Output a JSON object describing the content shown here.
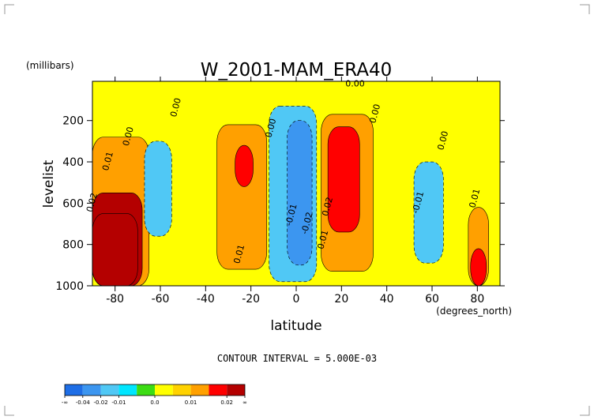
{
  "chart_data": {
    "type": "heatmap",
    "title": "W_2001-MAM_ERA40",
    "xlabel": "latitude",
    "ylabel": "levelist",
    "x_units": "(degrees_north)",
    "y_units": "(millibars)",
    "xlim": [
      -90,
      90
    ],
    "ylim": [
      1000,
      10
    ],
    "x_ticks": [
      -80,
      -60,
      -40,
      -20,
      0,
      20,
      40,
      60,
      80
    ],
    "x_tick_labels": [
      "-80",
      "-60",
      "-40",
      "-20",
      "0",
      "20",
      "40",
      "60",
      "80"
    ],
    "y_ticks": [
      200,
      400,
      600,
      800,
      1000
    ],
    "y_tick_labels": [
      "200",
      "400",
      "600",
      "800",
      "1000"
    ],
    "contour_interval_text": "CONTOUR INTERVAL = 5.000E-03",
    "colorbar": {
      "colors": [
        "#1e6ee6",
        "#3c96f0",
        "#50c8f5",
        "#00e6ff",
        "#3cdc14",
        "#ffff00",
        "#ffd200",
        "#ffa000",
        "#ff0000",
        "#b40000"
      ],
      "labels": [
        "-∞",
        "-0.04",
        "-0.02",
        "-0.01",
        "0.0",
        "0.01",
        "0.02",
        "∞"
      ],
      "label_values": [
        null,
        -0.04,
        -0.02,
        -0.01,
        0.0,
        0.01,
        0.02,
        null
      ]
    },
    "regions": [
      {
        "lat_min": -90,
        "lat_max": -65,
        "p_min": 280,
        "p_max": 1000,
        "value": 0.01
      },
      {
        "lat_min": -90,
        "lat_max": -68,
        "p_min": 550,
        "p_max": 1000,
        "value": 0.05
      },
      {
        "lat_min": -90,
        "lat_max": -70,
        "p_min": 650,
        "p_max": 1000,
        "value": 0.06
      },
      {
        "lat_min": -67,
        "lat_max": -55,
        "p_min": 300,
        "p_max": 760,
        "value": -0.01
      },
      {
        "lat_min": -35,
        "lat_max": -13,
        "p_min": 220,
        "p_max": 920,
        "value": 0.012
      },
      {
        "lat_min": -27,
        "lat_max": -19,
        "p_min": 320,
        "p_max": 520,
        "value": 0.025
      },
      {
        "lat_min": -12,
        "lat_max": 9,
        "p_min": 130,
        "p_max": 980,
        "value": -0.015
      },
      {
        "lat_min": -4,
        "lat_max": 7,
        "p_min": 200,
        "p_max": 900,
        "value": -0.03
      },
      {
        "lat_min": 11,
        "lat_max": 34,
        "p_min": 170,
        "p_max": 930,
        "value": 0.012
      },
      {
        "lat_min": 14,
        "lat_max": 28,
        "p_min": 230,
        "p_max": 740,
        "value": 0.025
      },
      {
        "lat_min": 52,
        "lat_max": 65,
        "p_min": 400,
        "p_max": 890,
        "value": -0.01
      },
      {
        "lat_min": 76,
        "lat_max": 85,
        "p_min": 620,
        "p_max": 1000,
        "value": 0.012
      },
      {
        "lat_min": 77,
        "lat_max": 84,
        "p_min": 820,
        "p_max": 1000,
        "value": 0.025
      }
    ],
    "annotations": [
      {
        "text": "0.00",
        "lat": 26,
        "p": 35
      },
      {
        "text": "0.00",
        "lat": -52,
        "p": 140
      },
      {
        "text": "0.00",
        "lat": -73,
        "p": 280
      },
      {
        "text": "0.00",
        "lat": -10,
        "p": 240
      },
      {
        "text": "0.00",
        "lat": 36,
        "p": 170
      },
      {
        "text": "0.00",
        "lat": 66,
        "p": 300
      },
      {
        "text": "0.01",
        "lat": -82,
        "p": 400
      },
      {
        "text": "0.02",
        "lat": -89,
        "p": 600
      },
      {
        "text": "0.01",
        "lat": -24,
        "p": 850
      },
      {
        "text": "-0.01",
        "lat": -1,
        "p": 660
      },
      {
        "text": "-0.02",
        "lat": 6,
        "p": 700
      },
      {
        "text": "0.02",
        "lat": 15,
        "p": 620
      },
      {
        "text": "0.01",
        "lat": 13,
        "p": 780
      },
      {
        "text": "-0.01",
        "lat": 55,
        "p": 600
      },
      {
        "text": "0.01",
        "lat": 80,
        "p": 580
      }
    ]
  }
}
